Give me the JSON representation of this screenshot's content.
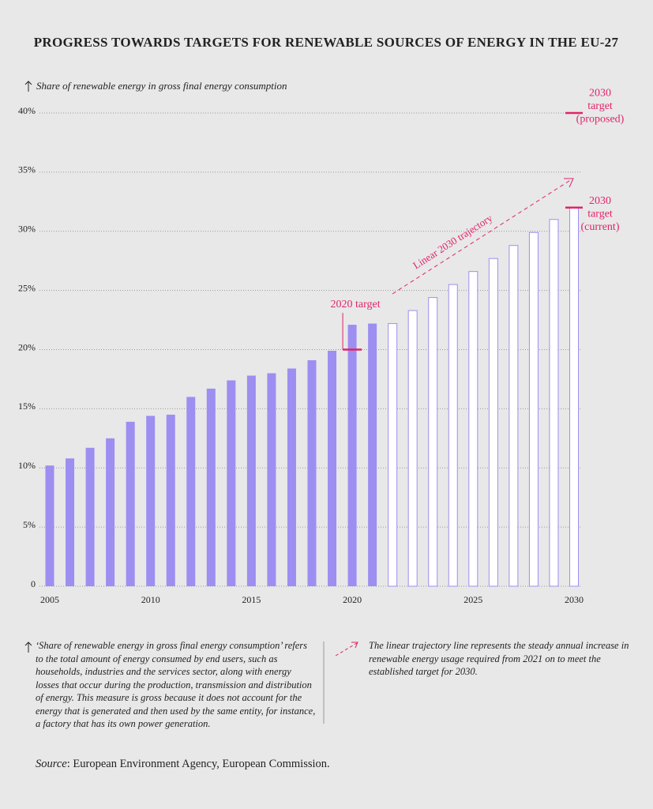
{
  "chart_data": {
    "type": "bar",
    "title": "PROGRESS TOWARDS TARGETS FOR RENEWABLE SOURCES OF ENERGY IN THE EU-27",
    "y_axis_label": "Share of renewable energy in gross final energy consumption",
    "categories": [
      "2005",
      null,
      null,
      null,
      null,
      "2010",
      null,
      null,
      null,
      null,
      "2015",
      null,
      null,
      null,
      null,
      "2020",
      null,
      null,
      null,
      null,
      null,
      "2025",
      null,
      null,
      null,
      null,
      "2030"
    ],
    "series": [
      {
        "style": "filled",
        "color": "#9d8ef2",
        "values": [
          10.2,
          10.8,
          11.7,
          12.5,
          13.9,
          14.4,
          14.5,
          16.0,
          16.7,
          17.4,
          17.8,
          18.0,
          18.4,
          19.1,
          19.9,
          22.1,
          22.2,
          null,
          null,
          null,
          null,
          null,
          null,
          null,
          null,
          null,
          null
        ]
      },
      {
        "style": "outline",
        "color": "#9d8ef2",
        "values": [
          null,
          null,
          null,
          null,
          null,
          null,
          null,
          null,
          null,
          null,
          null,
          null,
          null,
          null,
          null,
          null,
          null,
          22.2,
          23.3,
          24.4,
          25.5,
          26.6,
          27.7,
          28.8,
          29.9,
          31.0,
          32.0
        ]
      }
    ],
    "ylim": [
      0,
      40
    ],
    "yticks": [
      0,
      {
        "value": 5,
        "label": "5%"
      },
      {
        "value": 10,
        "label": "10%"
      },
      {
        "value": 15,
        "label": "15%"
      },
      {
        "value": 20,
        "label": "20%"
      },
      {
        "value": 25,
        "label": "25%"
      },
      {
        "value": 30,
        "label": "30%"
      },
      {
        "value": 35,
        "label": "35%"
      },
      {
        "value": 40,
        "label": "40%"
      }
    ],
    "grid": true,
    "targets": [
      {
        "label": [
          "2020 target"
        ],
        "value": 20,
        "color": "#e0246a"
      },
      {
        "label": [
          "2030",
          "target",
          "(current)"
        ],
        "value": 32,
        "color": "#e0246a"
      },
      {
        "label": [
          "2030",
          "target",
          "(proposed)"
        ],
        "value": 40,
        "color": "#e0246a"
      }
    ],
    "trajectory_label": "Linear 2030 trajectory",
    "notes": [
      "‘Share of renewable energy in gross final energy consumption’ refers to the total amount of energy consumed by end users, such as households, industries and the services sector, along with energy losses that occur during the production, transmission and distribution of energy. This measure is gross because it does not account for the energy that is generated and then used by the same entity, for instance, a factory that has its own power generation.",
      "The linear trajectory line represents the steady annual increase in renewable energy usage required from 2021 on to meet the established target for 2030."
    ],
    "source_label": "Source",
    "source_text": ": European Environment Agency, European Commission."
  }
}
